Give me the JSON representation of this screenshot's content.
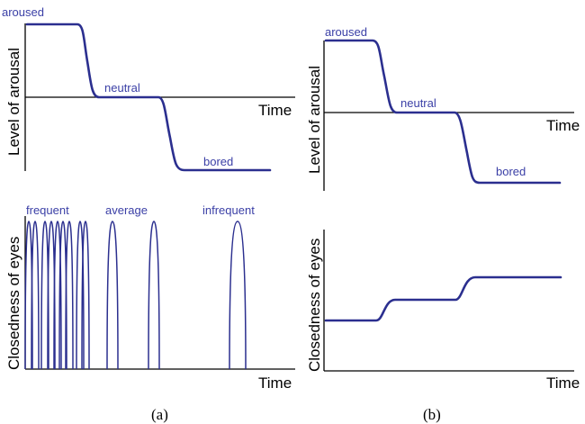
{
  "colors": {
    "curve": "#2b2f8f",
    "label": "#3a3fa6",
    "axis": "#000000"
  },
  "panel_a": {
    "caption": "(a)",
    "arousal": {
      "ylabel": "Level of arousal",
      "xlabel": "Time",
      "levels": {
        "aroused": "aroused",
        "neutral": "neutral",
        "bored": "bored"
      }
    },
    "eyes": {
      "ylabel": "Closedness of eyes",
      "xlabel": "Time",
      "groups": {
        "frequent": "frequent",
        "average": "average",
        "infrequent": "infrequent"
      }
    }
  },
  "panel_b": {
    "caption": "(b)",
    "arousal": {
      "ylabel": "Level of arousal",
      "xlabel": "Time",
      "levels": {
        "aroused": "aroused",
        "neutral": "neutral",
        "bored": "bored"
      }
    },
    "eyes": {
      "ylabel": "Closedness of eyes",
      "xlabel": "Time"
    }
  }
}
